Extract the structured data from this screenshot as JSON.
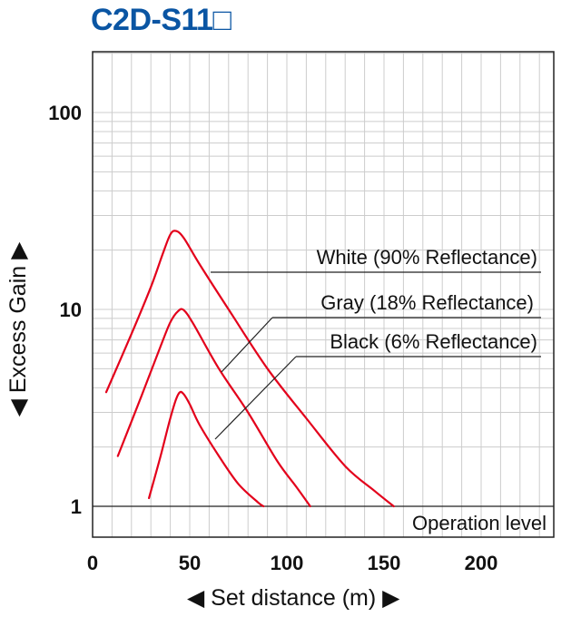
{
  "title": "C2D-S11□",
  "colors": {
    "title": "#0a55a3",
    "curve": "#e3001b",
    "grid": "#cccccc",
    "axis": "#222222"
  },
  "chart_data": {
    "type": "line",
    "title": "C2D-S11□",
    "xlabel": "◀ Set distance (m) ▶",
    "ylabel": "◀ Excess Gain ▶",
    "xlim": [
      0,
      240
    ],
    "ylim": [
      0.85,
      220
    ],
    "yscale": "log",
    "grid": true,
    "x_ticks": [
      {
        "v": 0,
        "label": "0"
      },
      {
        "v": 50,
        "label": "50"
      },
      {
        "v": 100,
        "label": "100"
      },
      {
        "v": 150,
        "label": "150"
      },
      {
        "v": 200,
        "label": "200"
      }
    ],
    "y_ticks": [
      {
        "v": 1,
        "label": "1"
      },
      {
        "v": 10,
        "label": "10"
      },
      {
        "v": 100,
        "label": "100"
      }
    ],
    "reference_line": {
      "value": 1,
      "label": "Operation level"
    },
    "series": [
      {
        "name": "White (90% Reflectance)",
        "x": [
          7,
          20,
          30,
          36,
          40,
          43,
          47,
          55,
          70,
          90,
          110,
          130,
          145,
          155
        ],
        "y": [
          3.8,
          7.5,
          13,
          19,
          24,
          25,
          23,
          17,
          10,
          5,
          2.8,
          1.6,
          1.2,
          1.0
        ]
      },
      {
        "name": "Gray (18% Reflectance)",
        "x": [
          13,
          25,
          35,
          40,
          44,
          47,
          52,
          65,
          80,
          95,
          105,
          112
        ],
        "y": [
          1.8,
          3.6,
          6.5,
          8.6,
          9.8,
          9.9,
          8.4,
          5,
          3,
          1.7,
          1.25,
          1.0
        ]
      },
      {
        "name": "Black (6% Reflectance)",
        "x": [
          29,
          35,
          40,
          43,
          45,
          47,
          50,
          55,
          65,
          75,
          85,
          88
        ],
        "y": [
          1.1,
          1.8,
          2.8,
          3.5,
          3.8,
          3.7,
          3.3,
          2.6,
          1.8,
          1.3,
          1.05,
          1.0
        ]
      }
    ]
  }
}
